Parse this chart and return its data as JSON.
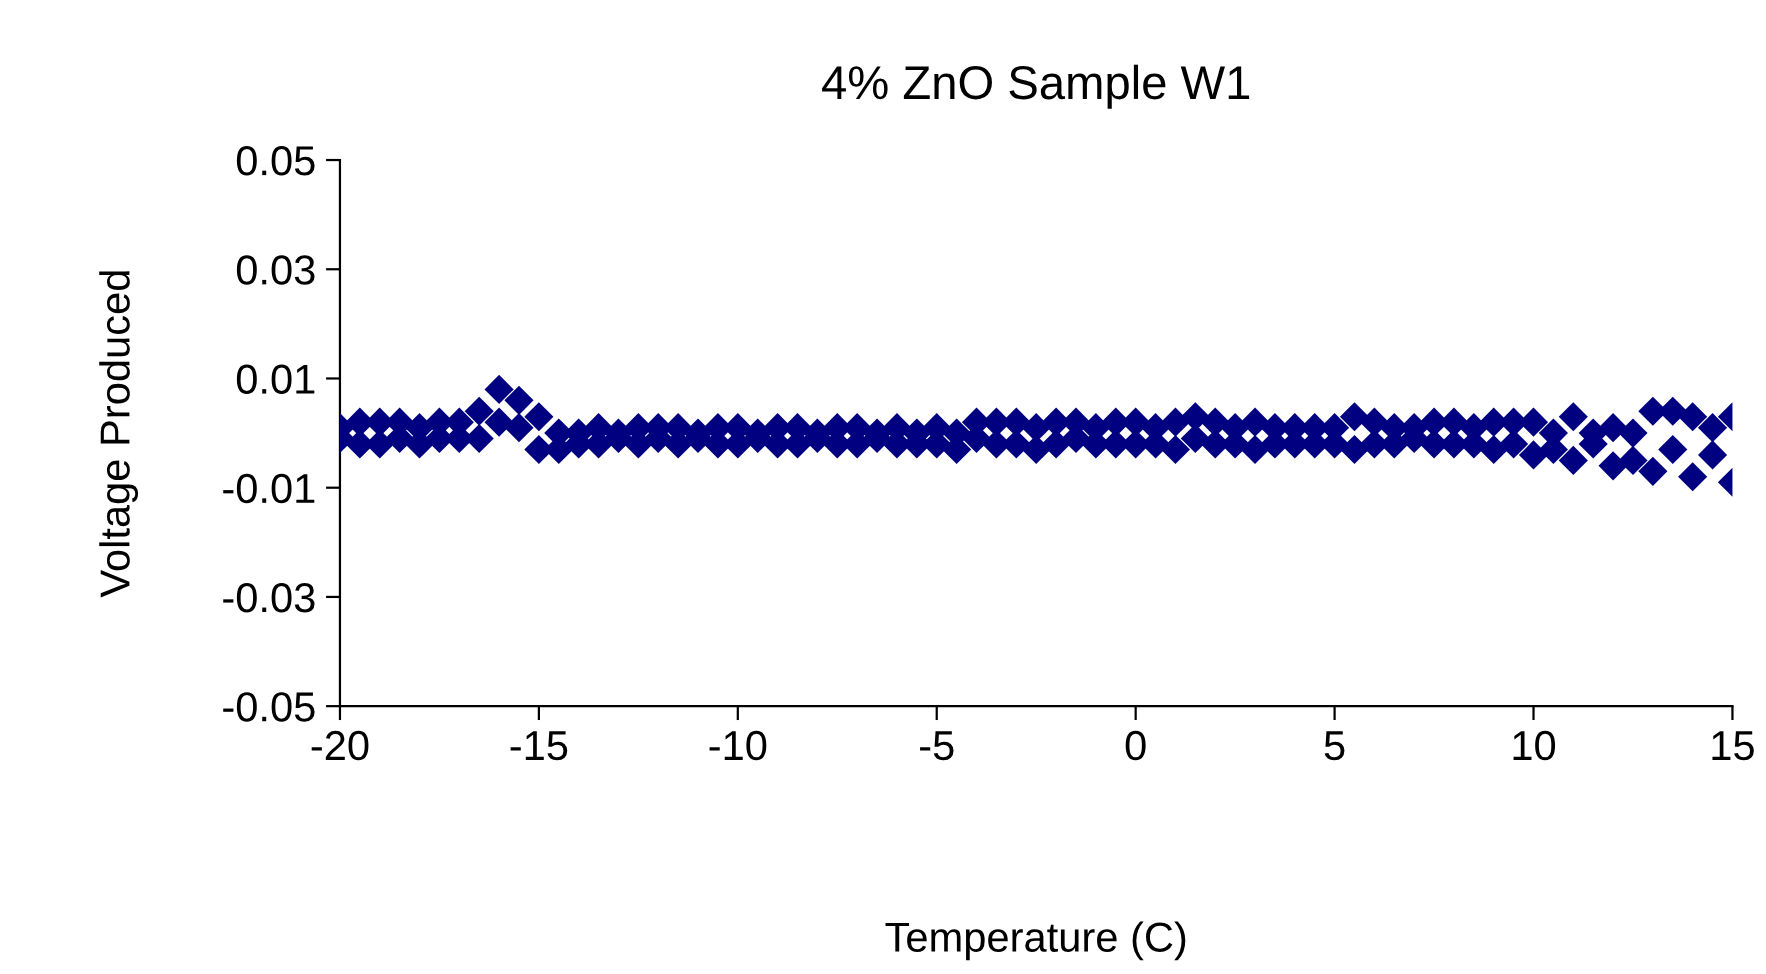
{
  "chart_data": {
    "type": "scatter",
    "title": "4% ZnO Sample W1",
    "xlabel": "Temperature (C)",
    "ylabel": "Voltage Produced",
    "xlim": [
      -20,
      15
    ],
    "xticks": [
      -20,
      -15,
      -10,
      -5,
      0,
      5,
      10,
      15
    ],
    "ylim": [
      -0.05,
      0.05
    ],
    "yticks": [
      {
        "value": 0.05,
        "label": "0.05"
      },
      {
        "value": 0.03,
        "label": "0.03"
      },
      {
        "value": 0.01,
        "label": "0.01"
      },
      {
        "value": -0.01,
        "label": "-0.01"
      },
      {
        "value": -0.03,
        "label": "-0.03"
      },
      {
        "value": -0.05,
        "label": "-0.05"
      }
    ],
    "marker": "diamond",
    "grid": false,
    "series": [
      {
        "color": "#000080",
        "x": [
          -20,
          -19.5,
          -19,
          -18.5,
          -18,
          -17.5,
          -17,
          -16.5,
          -16,
          -15.5,
          -15,
          -14.5,
          -14,
          -13.5,
          -13,
          -12.5,
          -12,
          -11.5,
          -11,
          -10.5,
          -10,
          -9.5,
          -9,
          -8.5,
          -8,
          -7.5,
          -7,
          -6.5,
          -6,
          -5.5,
          -5,
          -4.5,
          -4,
          -3.5,
          -3,
          -2.5,
          -2,
          -1.5,
          -1,
          -0.5,
          0,
          0.5,
          1,
          1.5,
          2,
          2.5,
          3,
          3.5,
          4,
          4.5,
          5,
          5.5,
          6,
          6.5,
          7,
          7.5,
          8,
          8.5,
          9,
          9.5,
          10,
          10.5,
          11,
          11.5,
          12,
          12.5,
          13,
          13.5,
          14,
          14.5,
          15
        ],
        "values": [
          0.001,
          0.002,
          0.002,
          0.002,
          0.001,
          0.002,
          0.002,
          0.004,
          0.008,
          0.006,
          0.003,
          0.0,
          0.0,
          0.001,
          0.0,
          0.001,
          0.001,
          0.001,
          0.0,
          0.001,
          0.001,
          0.0,
          0.001,
          0.001,
          0.0,
          0.001,
          0.001,
          0.0,
          0.001,
          0.0,
          0.001,
          0.0,
          0.002,
          0.002,
          0.002,
          0.001,
          0.002,
          0.002,
          0.001,
          0.002,
          0.002,
          0.001,
          0.002,
          0.003,
          0.002,
          0.001,
          0.002,
          0.001,
          0.001,
          0.001,
          0.001,
          0.003,
          0.002,
          0.001,
          0.001,
          0.002,
          0.002,
          0.001,
          0.002,
          0.002,
          0.002,
          0.0,
          0.003,
          0.0,
          0.001,
          0.0,
          0.004,
          0.004,
          0.003,
          0.001,
          0.003
        ]
      },
      {
        "color": "#000080",
        "x": [
          -20,
          -19.5,
          -19,
          -18.5,
          -18,
          -17.5,
          -17,
          -16.5,
          -16,
          -15.5,
          -15,
          -14.5,
          -14,
          -13.5,
          -13,
          -12.5,
          -12,
          -11.5,
          -11,
          -10.5,
          -10,
          -9.5,
          -9,
          -8.5,
          -8,
          -7.5,
          -7,
          -6.5,
          -6,
          -5.5,
          -5,
          -4.5,
          -4,
          -3.5,
          -3,
          -2.5,
          -2,
          -1.5,
          -1,
          -0.5,
          0,
          0.5,
          1,
          1.5,
          2,
          2.5,
          3,
          3.5,
          4,
          4.5,
          5,
          5.5,
          6,
          6.5,
          7,
          7.5,
          8,
          8.5,
          9,
          9.5,
          10,
          10.5,
          11,
          11.5,
          12,
          12.5,
          13,
          13.5,
          14,
          14.5,
          15
        ],
        "values": [
          -0.001,
          -0.002,
          -0.002,
          -0.001,
          -0.002,
          -0.001,
          -0.001,
          -0.001,
          0.002,
          0.001,
          -0.003,
          -0.003,
          -0.002,
          -0.002,
          -0.001,
          -0.002,
          -0.001,
          -0.002,
          -0.001,
          -0.002,
          -0.002,
          -0.001,
          -0.002,
          -0.002,
          -0.001,
          -0.002,
          -0.002,
          -0.001,
          -0.002,
          -0.002,
          -0.002,
          -0.003,
          -0.001,
          -0.002,
          -0.002,
          -0.003,
          -0.002,
          -0.001,
          -0.002,
          -0.002,
          -0.002,
          -0.002,
          -0.003,
          -0.001,
          -0.002,
          -0.002,
          -0.003,
          -0.002,
          -0.002,
          -0.002,
          -0.002,
          -0.003,
          -0.002,
          -0.002,
          -0.001,
          -0.002,
          -0.002,
          -0.002,
          -0.003,
          -0.002,
          -0.004,
          -0.003,
          -0.005,
          -0.002,
          -0.006,
          -0.005,
          -0.007,
          -0.003,
          -0.008,
          -0.004,
          -0.009
        ]
      }
    ]
  }
}
